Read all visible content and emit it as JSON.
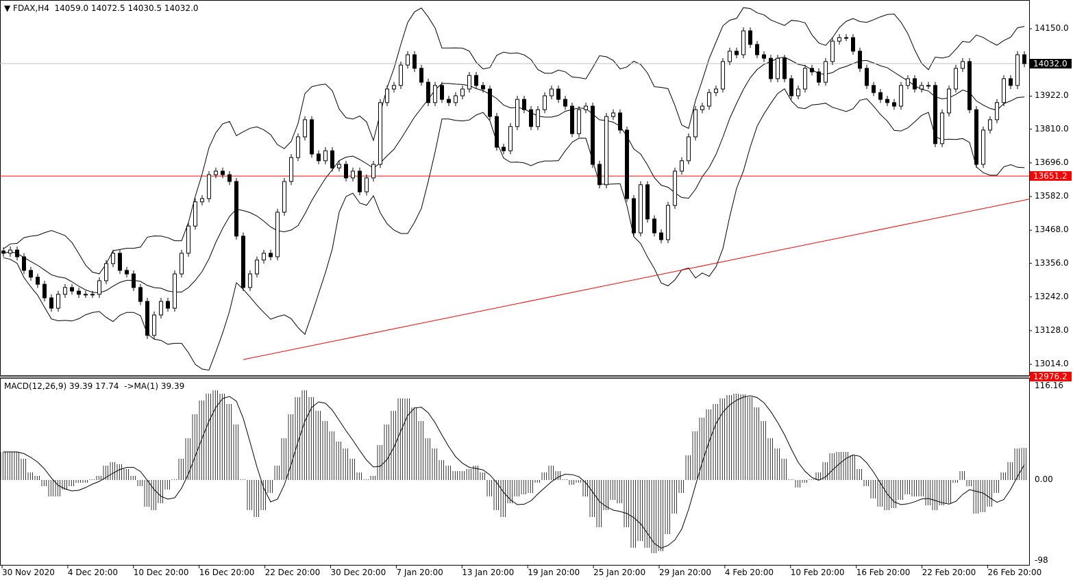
{
  "header": {
    "symbol": "FDAX,H4",
    "open": "14059.0",
    "high": "14072.5",
    "low": "14030.5",
    "close": "14032.0"
  },
  "macd_header": {
    "label": "MACD(12,26,9) 39.39 17.74",
    "ma_label": "->MA(1) 39.39"
  },
  "colors": {
    "trendline": "#ff0000",
    "level_line": "#ff0000",
    "price_line": "#c0c0c0",
    "bull_candle": "#ffffff",
    "bear_candle": "#000000",
    "axis": "#000000"
  },
  "chart_data": [
    {
      "type": "candlestick",
      "title": "FDAX,H4",
      "ylim": [
        12960,
        14210
      ],
      "y_ticks": [
        "14150.0",
        "13922.0",
        "13810.0",
        "13696.0",
        "13582.0",
        "13468.0",
        "13356.0",
        "13242.0",
        "13128.0",
        "13014.0"
      ],
      "price_tags": {
        "current": "14032.0",
        "level": "13651.2",
        "bottom": "12976.2"
      },
      "x_labels": [
        "30 Nov 2020",
        "4 Dec 20:00",
        "10 Dec 20:00",
        "16 Dec 20:00",
        "22 Dec 20:00",
        "30 Dec 20:00",
        "7 Jan 20:00",
        "13 Jan 20:00",
        "19 Jan 20:00",
        "25 Jan 20:00",
        "29 Jan 20:00",
        "4 Feb 20:00",
        "10 Feb 20:00",
        "16 Feb 20:00",
        "22 Feb 20:00",
        "26 Feb 20:00"
      ],
      "closes": [
        13390,
        13401,
        13378,
        13332,
        13309,
        13285,
        13239,
        13204,
        13251,
        13274,
        13262,
        13251,
        13251,
        13251,
        13297,
        13355,
        13390,
        13332,
        13320,
        13274,
        13227,
        13112,
        13181,
        13227,
        13204,
        13320,
        13390,
        13482,
        13564,
        13575,
        13656,
        13668,
        13656,
        13633,
        13448,
        13274,
        13320,
        13367,
        13390,
        13378,
        13529,
        13633,
        13714,
        13784,
        13842,
        13726,
        13703,
        13737,
        13679,
        13691,
        13645,
        13668,
        13598,
        13645,
        13691,
        13900,
        13946,
        13958,
        14027,
        14062,
        14016,
        13969,
        13900,
        13958,
        13911,
        13900,
        13923,
        13946,
        13992,
        13958,
        13946,
        13853,
        13749,
        13737,
        13819,
        13911,
        13876,
        13819,
        13876,
        13923,
        13946,
        13911,
        13888,
        13795,
        13876,
        13888,
        13691,
        13622,
        13853,
        13865,
        13807,
        13575,
        13459,
        13622,
        13506,
        13459,
        13436,
        13552,
        13668,
        13703,
        13784,
        13876,
        13888,
        13934,
        13946,
        14039,
        14074,
        14062,
        14143,
        14097,
        14062,
        14050,
        13981,
        14050,
        13981,
        13923,
        13946,
        14016,
        14004,
        13969,
        14039,
        14108,
        14120,
        14120,
        14074,
        14016,
        13958,
        13934,
        13911,
        13900,
        13888,
        13958,
        13981,
        13946,
        13958,
        13958,
        13761,
        13865,
        13946,
        14016,
        14039,
        13876,
        13691,
        13807,
        13842,
        13900,
        13981,
        13958,
        14062,
        14032
      ],
      "horizontal_lines": [
        {
          "price": 13651.2
        },
        {
          "price": 14032.0
        }
      ],
      "trendline": {
        "from_price": 13030,
        "to_price": 13573
      },
      "bollinger_bands": true
    },
    {
      "type": "bar",
      "title": "MACD(12,26,9)",
      "ylim": [
        -98,
        116.16
      ],
      "y_ticks": [
        "116.16",
        "0.00",
        "-98"
      ],
      "histogram": [
        34.5,
        34.5,
        34.5,
        26.1,
        9.3,
        5.1,
        -7.6,
        -20.2,
        -20.2,
        -11.8,
        -7.6,
        -3.4,
        -3.4,
        0.8,
        5.1,
        17.7,
        21.9,
        19.4,
        13.5,
        5.1,
        -7.6,
        -32.8,
        -37.1,
        -28.6,
        -11.8,
        0.8,
        26.1,
        51.4,
        80.8,
        97.7,
        106.1,
        110.3,
        106.1,
        93.5,
        68.2,
        0.8,
        -37.1,
        -45.5,
        -37.1,
        -16,
        17.7,
        51.4,
        80.8,
        101.9,
        110.3,
        101.9,
        85,
        72.4,
        59.8,
        47.2,
        38.7,
        26.1,
        9.3,
        0.8,
        5.1,
        42.9,
        68.2,
        85,
        100.2,
        100.2,
        89.3,
        72.4,
        51.4,
        38.7,
        24.4,
        17.7,
        10.9,
        10.9,
        13.5,
        17.7,
        9.3,
        -20.2,
        -37.1,
        -45.5,
        -28.6,
        -20.2,
        -17.7,
        -16,
        -3.4,
        9.3,
        17.7,
        10.9,
        0.8,
        -5.9,
        -3.4,
        -20.2,
        -45.5,
        -58.1,
        -37.1,
        -24.4,
        -28.6,
        -58.1,
        -83.4,
        -74.9,
        -83.4,
        -90.1,
        -87.6,
        -66.5,
        -41.3,
        -16,
        30.3,
        59.8,
        76.6,
        86.7,
        93.5,
        100.2,
        104.4,
        106.1,
        105.3,
        101.9,
        89.3,
        72.4,
        51.4,
        38.7,
        26.1,
        0.8,
        -9.3,
        -3.4,
        0.8,
        9.3,
        21.9,
        32.8,
        34.5,
        34.5,
        30.3,
        13.5,
        -7.6,
        -22.7,
        -32.8,
        -37.1,
        -34.5,
        -24.4,
        -17.7,
        -20.2,
        -20.2,
        -31.2,
        -37.1,
        -31.2,
        -28.6,
        -3.4,
        10.9,
        -7.6,
        -41.3,
        -39.6,
        -32.8,
        -16,
        9.3,
        21.9,
        38.7,
        39.39
      ]
    }
  ]
}
